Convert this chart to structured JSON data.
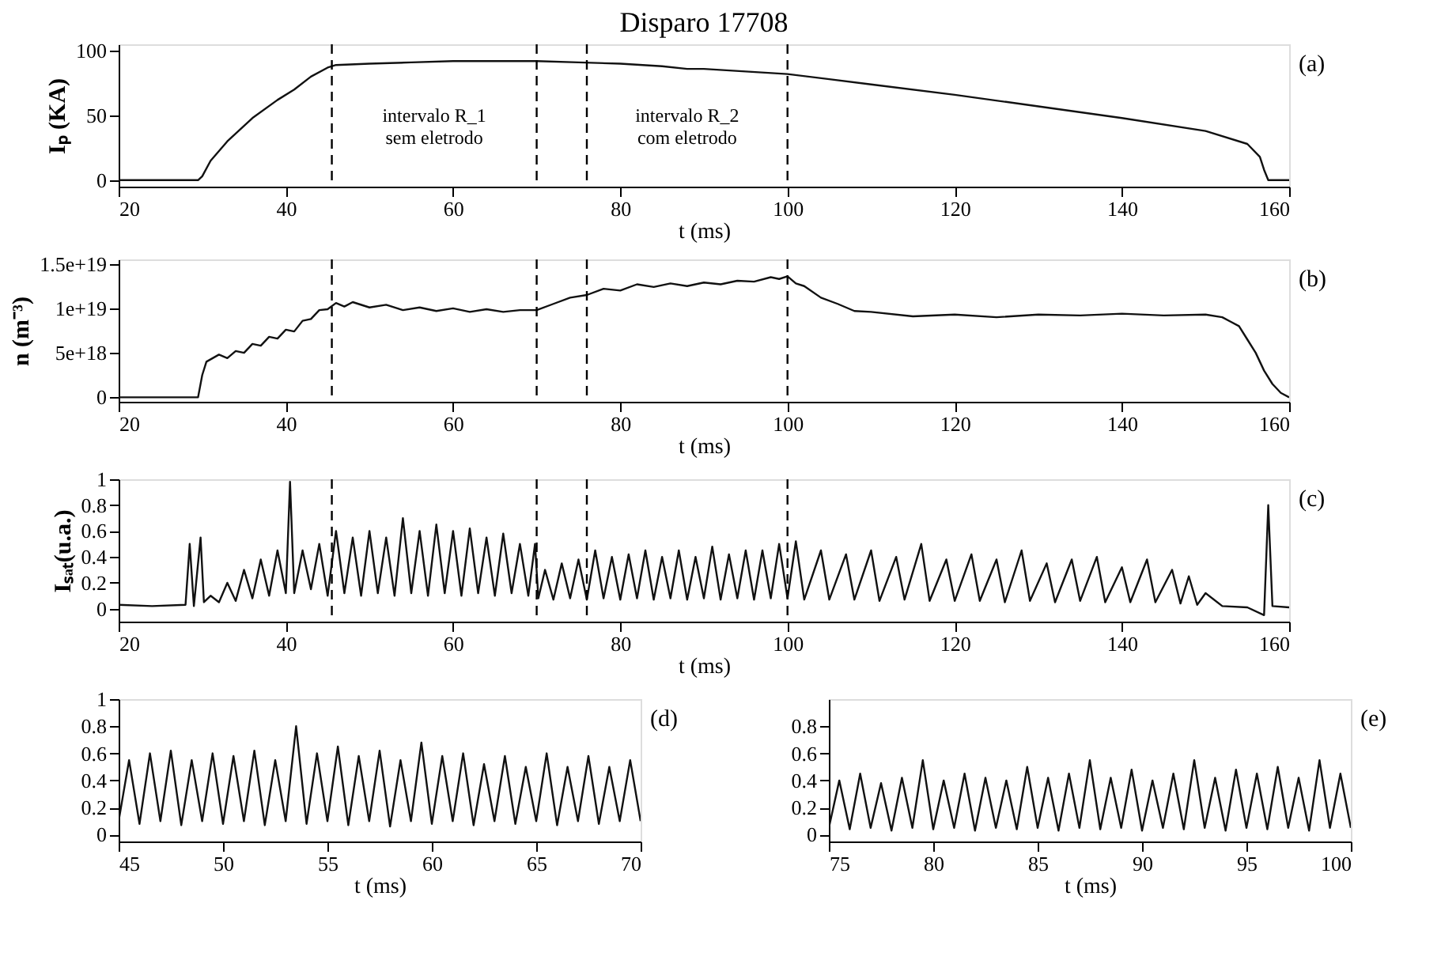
{
  "chart_data": [
    {
      "type": "line",
      "title": "Disparo 17708",
      "xlabel": "t (ms)",
      "ylabel": "Iₚ (KA)",
      "grid": false,
      "marker": "none",
      "line_style": "solid",
      "xlim": [
        20,
        160
      ],
      "xticks": [
        20,
        40,
        60,
        80,
        100,
        120,
        140,
        160
      ],
      "ylim": [
        -5,
        105
      ],
      "yticks": [
        0,
        50,
        100
      ],
      "series": [
        {
          "color": "#111111",
          "x": [
            20,
            29.5,
            30,
            31,
            33,
            36,
            39,
            41,
            43,
            45,
            46,
            50,
            55,
            60,
            65,
            70,
            75,
            80,
            85,
            88,
            90,
            95,
            100,
            105,
            110,
            120,
            130,
            140,
            150,
            155,
            156.5,
            157,
            157.5,
            160
          ],
          "values": [
            0,
            0,
            3,
            15,
            30,
            48,
            62,
            70,
            80,
            87,
            89,
            90,
            91,
            92,
            92,
            92,
            91,
            90,
            88,
            86,
            86,
            84,
            82,
            78,
            74,
            66,
            57,
            48,
            38,
            28,
            18,
            8,
            0,
            0
          ]
        }
      ],
      "ref_lines": [
        {
          "axis": "x",
          "value": 45.5,
          "line_style": "dashed"
        },
        {
          "axis": "x",
          "value": 70,
          "line_style": "dashed"
        },
        {
          "axis": "x",
          "value": 76,
          "line_style": "dashed"
        },
        {
          "axis": "x",
          "value": 100,
          "line_style": "dashed"
        }
      ],
      "annotations": [
        "intervalo R_1\nsem eletrodo",
        "intervalo R_2\ncom eletrodo",
        "(a)"
      ]
    },
    {
      "type": "line",
      "xlabel": "t (ms)",
      "ylabel": "n (m⁻³)",
      "grid": false,
      "marker": "none",
      "line_style": "solid",
      "xlim": [
        20,
        160
      ],
      "xticks": [
        20,
        40,
        60,
        80,
        100,
        120,
        140,
        160
      ],
      "ylim": [
        -5e+17,
        1.55e+19
      ],
      "yticks": [
        0,
        {
          "value": 5e+18,
          "label": "5e+18"
        },
        {
          "value": 1e+19,
          "label": "1e+19"
        },
        {
          "value": 1.5e+19,
          "label": "1.5e+19"
        }
      ],
      "series": [
        {
          "color": "#111111",
          "x": [
            20,
            29.5,
            30,
            30.5,
            32,
            33,
            34,
            35,
            36,
            37,
            38,
            39,
            40,
            41,
            42,
            43,
            44,
            45,
            46,
            47,
            48,
            50,
            52,
            54,
            56,
            58,
            60,
            62,
            64,
            66,
            68,
            70,
            72,
            74,
            76,
            78,
            80,
            82,
            84,
            86,
            88,
            90,
            92,
            94,
            96,
            98,
            99,
            100,
            101,
            102,
            104,
            106,
            108,
            110,
            115,
            120,
            125,
            130,
            135,
            140,
            145,
            150,
            152,
            153,
            154,
            155,
            156,
            157,
            158,
            159,
            160
          ],
          "values": [
            0,
            0,
            2.5e+18,
            4e+18,
            4.8e+18,
            4.4e+18,
            5.2e+18,
            5e+18,
            6e+18,
            5.8e+18,
            6.8e+18,
            6.6e+18,
            7.6e+18,
            7.4e+18,
            8.6e+18,
            8.8e+18,
            9.8e+18,
            9.9e+18,
            1.06e+19,
            1.02e+19,
            1.07e+19,
            1.01e+19,
            1.04e+19,
            9.8e+18,
            1.01e+19,
            9.7e+18,
            1e+19,
            9.6e+18,
            9.9e+18,
            9.6e+18,
            9.8e+18,
            9.8e+18,
            1.05e+19,
            1.12e+19,
            1.15e+19,
            1.22e+19,
            1.2e+19,
            1.27e+19,
            1.24e+19,
            1.28e+19,
            1.25e+19,
            1.29e+19,
            1.27e+19,
            1.31e+19,
            1.3e+19,
            1.35e+19,
            1.33e+19,
            1.36e+19,
            1.28e+19,
            1.25e+19,
            1.12e+19,
            1.05e+19,
            9.7e+18,
            9.6e+18,
            9.1e+18,
            9.3e+18,
            9e+18,
            9.3e+18,
            9.2e+18,
            9.4e+18,
            9.2e+18,
            9.3e+18,
            9e+18,
            8.5e+18,
            8e+18,
            6.5e+18,
            5e+18,
            3e+18,
            1.5e+18,
            5e+17,
            0
          ]
        }
      ],
      "ref_lines": [
        {
          "axis": "x",
          "value": 45.5,
          "line_style": "dashed"
        },
        {
          "axis": "x",
          "value": 70,
          "line_style": "dashed"
        },
        {
          "axis": "x",
          "value": 76,
          "line_style": "dashed"
        },
        {
          "axis": "x",
          "value": 100,
          "line_style": "dashed"
        }
      ],
      "annotations": [
        "(b)"
      ]
    },
    {
      "type": "line",
      "xlabel": "t (ms)",
      "ylabel": "Iₛₐₜ(u.a.)",
      "grid": false,
      "marker": "none",
      "line_style": "solid",
      "xlim": [
        20,
        160
      ],
      "xticks": [
        20,
        40,
        60,
        80,
        100,
        120,
        140,
        160
      ],
      "ylim": [
        -0.1,
        1
      ],
      "yticks": [
        0,
        0.2,
        0.4,
        0.6,
        0.8,
        1
      ],
      "series": [
        {
          "color": "#111111",
          "x": [
            20,
            24,
            28,
            28.5,
            29,
            29.8,
            30.2,
            31,
            32,
            33,
            34,
            35,
            36,
            37,
            38,
            39,
            40,
            40.5,
            41,
            42,
            43,
            44,
            45,
            46,
            47,
            48,
            49,
            50,
            51,
            52,
            53,
            54,
            55,
            56,
            57,
            58,
            59,
            60,
            61,
            62,
            63,
            64,
            65,
            66,
            67,
            68,
            69,
            69.8,
            70.2,
            71,
            72,
            73,
            74,
            75,
            76,
            77,
            78,
            79,
            80,
            81,
            82,
            83,
            84,
            85,
            86,
            87,
            88,
            89,
            90,
            91,
            92,
            93,
            94,
            95,
            96,
            97,
            98,
            99,
            100,
            101,
            102,
            104,
            105,
            107,
            108,
            110,
            111,
            113,
            114,
            116,
            117,
            119,
            120,
            122,
            123,
            125,
            126,
            128,
            129,
            131,
            132,
            134,
            135,
            137,
            138,
            140,
            141,
            143,
            144,
            146,
            147,
            148,
            149,
            150,
            152,
            155,
            157,
            157.5,
            158,
            160
          ],
          "values": [
            0.03,
            0.02,
            0.03,
            0.5,
            0.02,
            0.55,
            0.05,
            0.1,
            0.05,
            0.2,
            0.06,
            0.3,
            0.08,
            0.38,
            0.1,
            0.45,
            0.12,
            0.98,
            0.12,
            0.45,
            0.15,
            0.5,
            0.1,
            0.6,
            0.12,
            0.55,
            0.1,
            0.6,
            0.12,
            0.55,
            0.1,
            0.7,
            0.12,
            0.6,
            0.1,
            0.65,
            0.12,
            0.6,
            0.1,
            0.62,
            0.12,
            0.55,
            0.1,
            0.58,
            0.12,
            0.5,
            0.1,
            0.5,
            0.08,
            0.3,
            0.07,
            0.35,
            0.08,
            0.38,
            0.07,
            0.45,
            0.08,
            0.4,
            0.07,
            0.42,
            0.08,
            0.45,
            0.07,
            0.4,
            0.08,
            0.45,
            0.07,
            0.4,
            0.08,
            0.48,
            0.07,
            0.42,
            0.08,
            0.45,
            0.07,
            0.45,
            0.08,
            0.5,
            0.08,
            0.52,
            0.07,
            0.45,
            0.07,
            0.42,
            0.07,
            0.45,
            0.06,
            0.4,
            0.07,
            0.5,
            0.06,
            0.38,
            0.06,
            0.42,
            0.06,
            0.38,
            0.05,
            0.45,
            0.06,
            0.35,
            0.05,
            0.38,
            0.06,
            0.4,
            0.05,
            0.32,
            0.05,
            0.38,
            0.05,
            0.3,
            0.04,
            0.25,
            0.03,
            0.12,
            0.02,
            0.01,
            -0.05,
            0.8,
            0.02,
            0.01
          ]
        }
      ],
      "ref_lines": [
        {
          "axis": "x",
          "value": 45.5,
          "line_style": "dashed"
        },
        {
          "axis": "x",
          "value": 70,
          "line_style": "dashed"
        },
        {
          "axis": "x",
          "value": 76,
          "line_style": "dashed"
        },
        {
          "axis": "x",
          "value": 100,
          "line_style": "dashed"
        }
      ],
      "annotations": [
        "(c)"
      ]
    },
    {
      "type": "line",
      "xlabel": "t (ms)",
      "grid": false,
      "marker": "none",
      "line_style": "solid",
      "xlim": [
        45,
        70
      ],
      "xticks": [
        45,
        50,
        55,
        60,
        65,
        70
      ],
      "ylim": [
        -0.05,
        1
      ],
      "yticks": [
        0,
        0.2,
        0.4,
        0.6,
        0.8,
        1
      ],
      "series": [
        {
          "color": "#111111",
          "x": [
            45,
            45.5,
            46,
            46.5,
            47,
            47.5,
            48,
            48.5,
            49,
            49.5,
            50,
            50.5,
            51,
            51.5,
            52,
            52.5,
            53,
            53.5,
            54,
            54.5,
            55,
            55.5,
            56,
            56.5,
            57,
            57.5,
            58,
            58.5,
            59,
            59.5,
            60,
            60.5,
            61,
            61.5,
            62,
            62.5,
            63,
            63.5,
            64,
            64.5,
            65,
            65.5,
            66,
            66.5,
            67,
            67.5,
            68,
            68.5,
            69,
            69.5,
            70
          ],
          "values": [
            0.1,
            0.55,
            0.08,
            0.6,
            0.1,
            0.62,
            0.07,
            0.55,
            0.1,
            0.6,
            0.08,
            0.58,
            0.1,
            0.62,
            0.07,
            0.55,
            0.1,
            0.8,
            0.08,
            0.6,
            0.1,
            0.65,
            0.07,
            0.58,
            0.1,
            0.62,
            0.06,
            0.55,
            0.1,
            0.68,
            0.08,
            0.58,
            0.1,
            0.6,
            0.07,
            0.52,
            0.1,
            0.58,
            0.08,
            0.5,
            0.1,
            0.6,
            0.07,
            0.5,
            0.1,
            0.58,
            0.08,
            0.5,
            0.1,
            0.55,
            0.1
          ]
        }
      ],
      "annotations": [
        "(d)"
      ]
    },
    {
      "type": "line",
      "xlabel": "t (ms)",
      "grid": false,
      "marker": "none",
      "line_style": "solid",
      "xlim": [
        75,
        100
      ],
      "xticks": [
        75,
        80,
        85,
        90,
        95,
        100
      ],
      "ylim": [
        -0.05,
        1
      ],
      "yticks": [
        0,
        0.2,
        0.4,
        0.6,
        0.8
      ],
      "series": [
        {
          "color": "#111111",
          "x": [
            75,
            75.5,
            76,
            76.5,
            77,
            77.5,
            78,
            78.5,
            79,
            79.5,
            80,
            80.5,
            81,
            81.5,
            82,
            82.5,
            83,
            83.5,
            84,
            84.5,
            85,
            85.5,
            86,
            86.5,
            87,
            87.5,
            88,
            88.5,
            89,
            89.5,
            90,
            90.5,
            91,
            91.5,
            92,
            92.5,
            93,
            93.5,
            94,
            94.5,
            95,
            95.5,
            96,
            96.5,
            97,
            97.5,
            98,
            98.5,
            99,
            99.5,
            100
          ],
          "values": [
            0.05,
            0.4,
            0.04,
            0.45,
            0.05,
            0.38,
            0.03,
            0.42,
            0.05,
            0.55,
            0.04,
            0.4,
            0.05,
            0.45,
            0.03,
            0.42,
            0.05,
            0.4,
            0.04,
            0.5,
            0.05,
            0.42,
            0.03,
            0.45,
            0.05,
            0.55,
            0.04,
            0.42,
            0.05,
            0.48,
            0.03,
            0.4,
            0.05,
            0.45,
            0.04,
            0.55,
            0.05,
            0.42,
            0.03,
            0.48,
            0.05,
            0.45,
            0.04,
            0.5,
            0.05,
            0.42,
            0.03,
            0.55,
            0.05,
            0.45,
            0.05
          ]
        }
      ],
      "annotations": [
        "(e)"
      ]
    }
  ]
}
